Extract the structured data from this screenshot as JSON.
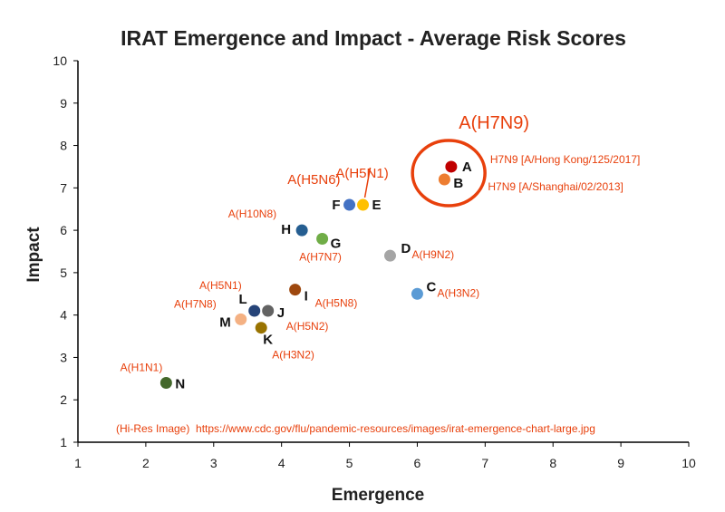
{
  "chart_data": {
    "type": "scatter",
    "title": "IRAT Emergence and Impact - Average Risk Scores",
    "xlabel": "Emergence",
    "ylabel": "Impact",
    "xlim": [
      1,
      10
    ],
    "ylim": [
      1,
      10
    ],
    "xticks": [
      "1",
      "2",
      "3",
      "4",
      "5",
      "6",
      "7",
      "8",
      "9",
      "10"
    ],
    "yticks": [
      "1",
      "2",
      "3",
      "4",
      "5",
      "6",
      "7",
      "8",
      "9",
      "10"
    ],
    "grid": false,
    "points": [
      {
        "id": "A",
        "virus": "H7N9 [A/Hong Kong/125/2017]",
        "x": 6.5,
        "y": 7.5,
        "color": "#c00000"
      },
      {
        "id": "B",
        "virus": "H7N9 [A/Shanghai/02/2013]",
        "x": 6.4,
        "y": 7.2,
        "color": "#ed7d31"
      },
      {
        "id": "C",
        "virus": "A(H3N2)",
        "x": 6.0,
        "y": 4.5,
        "color": "#5b9bd5"
      },
      {
        "id": "D",
        "virus": "A(H9N2)",
        "x": 5.6,
        "y": 5.4,
        "color": "#a5a5a5"
      },
      {
        "id": "E",
        "virus": "A(H5N1)",
        "x": 5.2,
        "y": 6.6,
        "color": "#ffc000"
      },
      {
        "id": "F",
        "virus": "A(H5N6)",
        "x": 5.0,
        "y": 6.6,
        "color": "#4472c4"
      },
      {
        "id": "G",
        "virus": "A(H7N7)",
        "x": 4.6,
        "y": 5.8,
        "color": "#70ad47"
      },
      {
        "id": "H",
        "virus": "A(H10N8)",
        "x": 4.3,
        "y": 6.0,
        "color": "#255e91"
      },
      {
        "id": "I",
        "virus": "A(H5N8)",
        "x": 4.2,
        "y": 4.6,
        "color": "#9e480e"
      },
      {
        "id": "J",
        "virus": "A(H5N2)",
        "x": 3.8,
        "y": 4.1,
        "color": "#636363"
      },
      {
        "id": "K",
        "virus": "A(H3N2)",
        "x": 3.7,
        "y": 3.7,
        "color": "#997300"
      },
      {
        "id": "L",
        "virus": "A(H5N1)",
        "x": 3.6,
        "y": 4.1,
        "color": "#264478"
      },
      {
        "id": "M",
        "virus": "A(H7N8)",
        "x": 3.4,
        "y": 3.9,
        "color": "#f4b183"
      },
      {
        "id": "N",
        "virus": "A(H1N1)",
        "x": 2.3,
        "y": 2.4,
        "color": "#43682b"
      }
    ],
    "annotations": {
      "highlight_label": "A(H7N9)",
      "highlight_color": "#e8400c",
      "source_note": "(Hi-Res Image)  https://www.cdc.gov/flu/pandemic-resources/images/irat-emergence-chart-large.jpg"
    }
  }
}
